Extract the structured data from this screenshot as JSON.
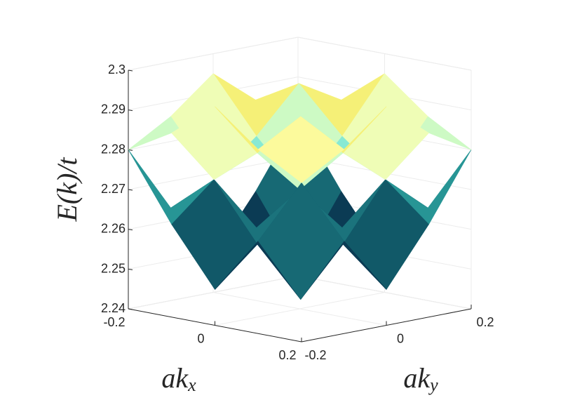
{
  "chart_data": {
    "type": "surface",
    "xlabel": "ak_x",
    "ylabel": "ak_y",
    "zlabel": "E(k)/t",
    "x": [
      -0.2,
      -0.1,
      0,
      0.1,
      0.2
    ],
    "y": [
      -0.2,
      -0.1,
      0,
      0.1,
      0.2
    ],
    "surfaces": [
      {
        "z": [
          [
            2.28,
            2.2633,
            2.249,
            2.2633,
            2.28
          ],
          [
            2.2633,
            2.2725,
            2.2583,
            2.2465,
            2.2633
          ],
          [
            2.249,
            2.2583,
            2.27,
            2.2583,
            2.249
          ],
          [
            2.2633,
            2.2465,
            2.2583,
            2.2725,
            2.2633
          ],
          [
            2.28,
            2.2633,
            2.249,
            2.2633,
            2.28
          ]
        ]
      },
      {
        "z": [
          [
            2.28,
            2.2863,
            2.295,
            2.2863,
            2.28
          ],
          [
            2.2863,
            2.2725,
            2.2813,
            2.2925,
            2.2863
          ],
          [
            2.295,
            2.2813,
            2.27,
            2.2813,
            2.295
          ],
          [
            2.2863,
            2.2925,
            2.2813,
            2.2725,
            2.2863
          ],
          [
            2.28,
            2.2863,
            2.295,
            2.2863,
            2.28
          ]
        ]
      }
    ],
    "colormap": "parula",
    "xlim": [
      -0.2,
      0.2
    ],
    "ylim": [
      -0.2,
      0.2
    ],
    "zlim": [
      2.24,
      2.3
    ],
    "xticks": [
      -0.2,
      0,
      0.2
    ],
    "yticks": [
      -0.2,
      0,
      0.2
    ],
    "zticks": [
      2.24,
      2.25,
      2.26,
      2.27,
      2.28,
      2.29,
      2.3
    ],
    "grid": true
  }
}
